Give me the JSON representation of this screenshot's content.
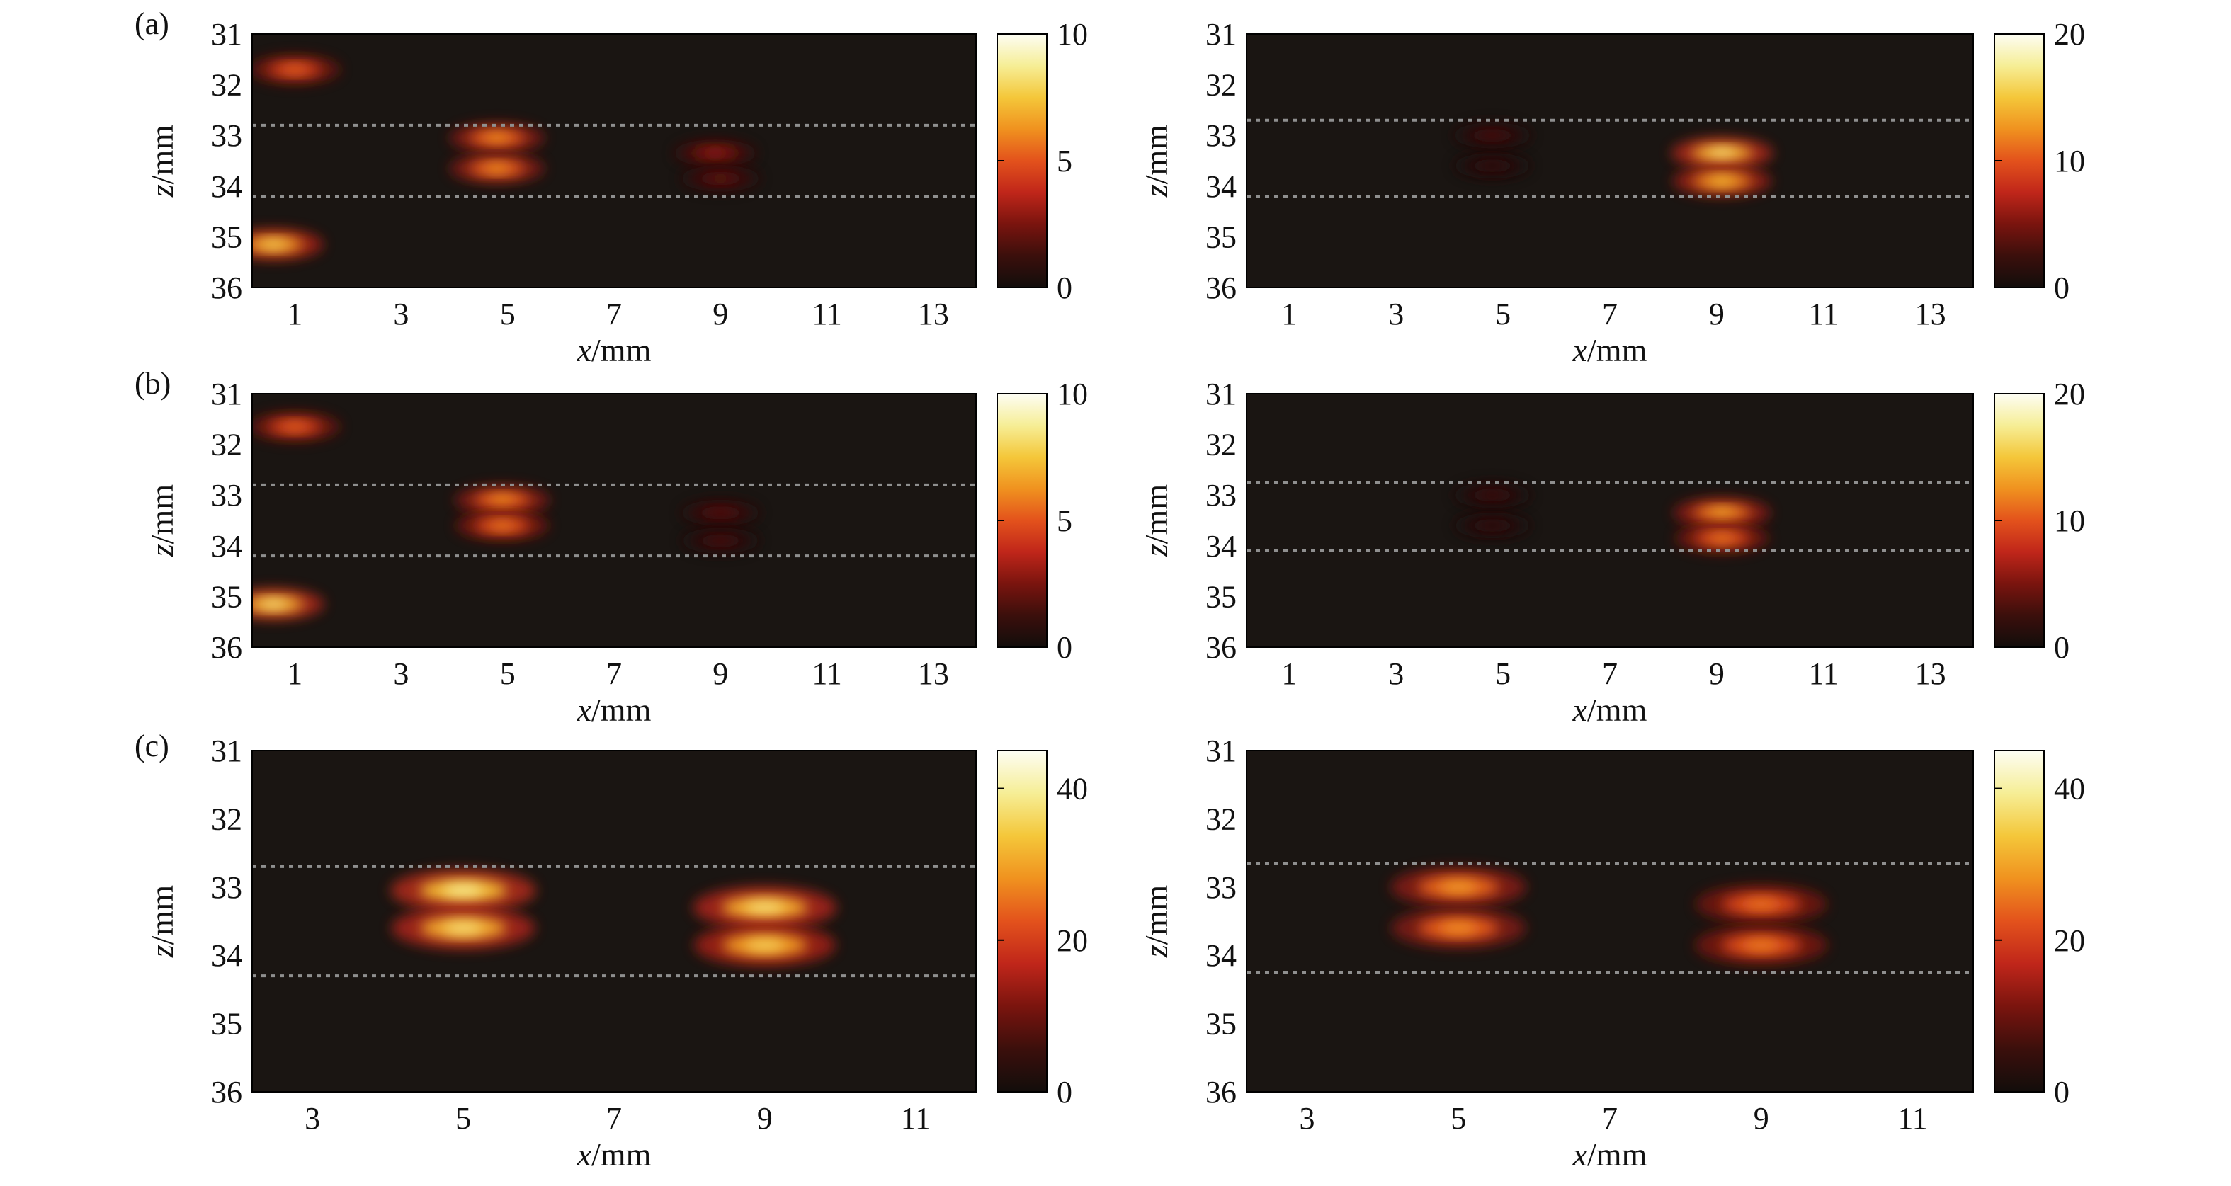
{
  "figure": {
    "row_labels": [
      "(a)",
      "(b)",
      "(c)"
    ],
    "background": "#ffffff",
    "plot_background": "#1a1512",
    "guide_line_color": "#8f8f8f",
    "colormap": [
      "#120d0b",
      "#3b0f0c",
      "#7a140e",
      "#c0261a",
      "#e3521c",
      "#f0921f",
      "#f4c73a",
      "#f6ee96",
      "#fdfdf4"
    ]
  },
  "chart_data": [
    {
      "id": "a-left",
      "type": "heatmap",
      "xlabel": "x/mm",
      "ylabel": "z/mm",
      "xlim": [
        0.2,
        13.8
      ],
      "ylim": [
        31,
        36
      ],
      "y_inverted": true,
      "xticks": [
        "1",
        "3",
        "5",
        "7",
        "9",
        "11",
        "13"
      ],
      "yticks": [
        "31",
        "32",
        "33",
        "34",
        "35",
        "36"
      ],
      "colorbar": {
        "min": 0,
        "max": 10,
        "ticks": [
          "0",
          "5",
          "10"
        ]
      },
      "guide_lines_z": [
        32.8,
        34.2
      ],
      "spots": [
        {
          "x": 1.0,
          "z": 31.7,
          "value": 5.5
        },
        {
          "x": 4.8,
          "z": 33.05,
          "value": 6.5
        },
        {
          "x": 4.8,
          "z": 33.65,
          "value": 6.5
        },
        {
          "x": 8.9,
          "z": 33.35,
          "value": 3.0
        },
        {
          "x": 9.0,
          "z": 33.85,
          "value": 2.0
        },
        {
          "x": 0.6,
          "z": 35.15,
          "value": 8.0
        }
      ]
    },
    {
      "id": "a-right",
      "type": "heatmap",
      "xlabel": "x/mm",
      "ylabel": "z/mm",
      "xlim": [
        0.2,
        13.8
      ],
      "ylim": [
        31,
        36
      ],
      "y_inverted": true,
      "xticks": [
        "1",
        "3",
        "5",
        "7",
        "9",
        "11",
        "13"
      ],
      "yticks": [
        "31",
        "32",
        "33",
        "34",
        "35",
        "36"
      ],
      "colorbar": {
        "min": 0,
        "max": 20,
        "ticks": [
          "0",
          "10",
          "20"
        ]
      },
      "guide_lines_z": [
        32.7,
        34.2
      ],
      "spots": [
        {
          "x": 4.8,
          "z": 33.0,
          "value": 3.0
        },
        {
          "x": 4.8,
          "z": 33.6,
          "value": 2.0
        },
        {
          "x": 9.1,
          "z": 33.35,
          "value": 17.0
        },
        {
          "x": 9.1,
          "z": 33.9,
          "value": 15.0
        }
      ]
    },
    {
      "id": "b-left",
      "type": "heatmap",
      "xlabel": "x/mm",
      "ylabel": "z/mm",
      "xlim": [
        0.2,
        13.8
      ],
      "ylim": [
        31,
        36
      ],
      "y_inverted": true,
      "xticks": [
        "1",
        "3",
        "5",
        "7",
        "9",
        "11",
        "13"
      ],
      "yticks": [
        "31",
        "32",
        "33",
        "34",
        "35",
        "36"
      ],
      "colorbar": {
        "min": 0,
        "max": 10,
        "ticks": [
          "0",
          "5",
          "10"
        ]
      },
      "guide_lines_z": [
        32.8,
        34.2
      ],
      "spots": [
        {
          "x": 1.0,
          "z": 31.65,
          "value": 5.5
        },
        {
          "x": 4.9,
          "z": 33.1,
          "value": 6.5
        },
        {
          "x": 4.9,
          "z": 33.6,
          "value": 6.0
        },
        {
          "x": 9.0,
          "z": 33.35,
          "value": 1.8
        },
        {
          "x": 9.0,
          "z": 33.9,
          "value": 1.5
        },
        {
          "x": 0.6,
          "z": 35.15,
          "value": 8.5
        }
      ]
    },
    {
      "id": "b-right",
      "type": "heatmap",
      "xlabel": "x/mm",
      "ylabel": "z/mm",
      "xlim": [
        0.2,
        13.8
      ],
      "ylim": [
        31,
        36
      ],
      "y_inverted": true,
      "xticks": [
        "1",
        "3",
        "5",
        "7",
        "9",
        "11",
        "13"
      ],
      "yticks": [
        "31",
        "32",
        "33",
        "34",
        "35",
        "36"
      ],
      "colorbar": {
        "min": 0,
        "max": 20,
        "ticks": [
          "0",
          "10",
          "20"
        ]
      },
      "guide_lines_z": [
        32.75,
        34.1
      ],
      "spots": [
        {
          "x": 4.8,
          "z": 33.0,
          "value": 2.5
        },
        {
          "x": 4.8,
          "z": 33.6,
          "value": 2.0
        },
        {
          "x": 9.1,
          "z": 33.35,
          "value": 14.0
        },
        {
          "x": 9.1,
          "z": 33.85,
          "value": 12.0
        }
      ]
    },
    {
      "id": "c-left",
      "type": "heatmap",
      "xlabel": "x/mm",
      "ylabel": "z/mm",
      "xlim": [
        2.2,
        11.8
      ],
      "ylim": [
        31,
        36
      ],
      "y_inverted": true,
      "xticks": [
        "3",
        "5",
        "7",
        "9",
        "11"
      ],
      "yticks": [
        "31",
        "32",
        "33",
        "34",
        "35",
        "36"
      ],
      "colorbar": {
        "min": 0,
        "max": 45,
        "ticks": [
          "0",
          "20",
          "40"
        ]
      },
      "guide_lines_z": [
        32.7,
        34.3
      ],
      "spots": [
        {
          "x": 5.0,
          "z": 33.05,
          "value": 40.0
        },
        {
          "x": 5.0,
          "z": 33.6,
          "value": 38.0
        },
        {
          "x": 9.0,
          "z": 33.3,
          "value": 38.0
        },
        {
          "x": 9.0,
          "z": 33.85,
          "value": 36.0
        }
      ]
    },
    {
      "id": "c-right",
      "type": "heatmap",
      "xlabel": "x/mm",
      "ylabel": "z/mm",
      "xlim": [
        2.2,
        11.8
      ],
      "ylim": [
        31,
        36
      ],
      "y_inverted": true,
      "xticks": [
        "3",
        "5",
        "7",
        "9",
        "11"
      ],
      "yticks": [
        "31",
        "32",
        "33",
        "34",
        "35",
        "36"
      ],
      "colorbar": {
        "min": 0,
        "max": 45,
        "ticks": [
          "0",
          "20",
          "40"
        ]
      },
      "guide_lines_z": [
        32.65,
        34.25
      ],
      "spots": [
        {
          "x": 5.0,
          "z": 33.0,
          "value": 30.0
        },
        {
          "x": 5.0,
          "z": 33.6,
          "value": 29.0
        },
        {
          "x": 9.0,
          "z": 33.25,
          "value": 26.0
        },
        {
          "x": 9.0,
          "z": 33.85,
          "value": 27.0
        }
      ]
    }
  ]
}
